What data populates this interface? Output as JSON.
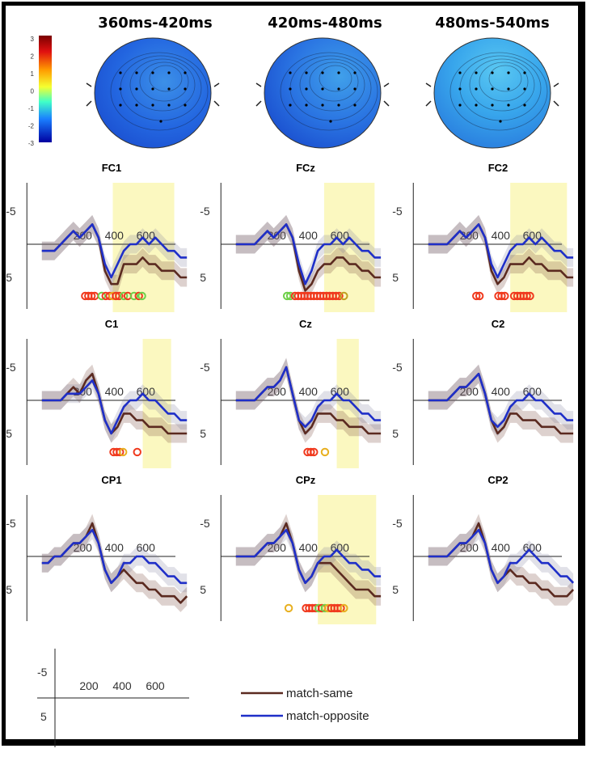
{
  "chart_data": {
    "type": "line",
    "topomaps": {
      "titles": [
        "360ms-420ms",
        "420ms-480ms",
        "480ms-540ms"
      ],
      "colorbar": {
        "ticks": [
          "3",
          "2",
          "1",
          "0",
          "-1",
          "-2",
          "-3"
        ],
        "range": [
          -3,
          3
        ]
      },
      "mean_amplitude": [
        -2.0,
        -1.8,
        -1.5
      ]
    },
    "x_ticks": [
      "200",
      "400",
      "600"
    ],
    "y_ticks": [
      "-5",
      "5"
    ],
    "y_inverted": true,
    "series": [
      {
        "name": "match-same",
        "color": "#5b2a20"
      },
      {
        "name": "match-opposite",
        "color": "#1f2fc8"
      }
    ],
    "panels": [
      {
        "title": "FC1",
        "highlight_ms": [
          350,
          740
        ],
        "x": [
          -100,
          -60,
          -20,
          20,
          60,
          100,
          140,
          180,
          220,
          260,
          300,
          340,
          380,
          420,
          460,
          500,
          540,
          580,
          620,
          660,
          700,
          740,
          780,
          820
        ],
        "match_same": [
          1,
          1,
          1,
          0,
          -1,
          -2,
          -1,
          -2,
          -3,
          -1,
          4,
          6,
          6,
          3,
          3,
          3,
          2,
          3,
          3,
          4,
          4,
          4,
          5,
          5
        ],
        "match_opposite": [
          1,
          1,
          1,
          0,
          -1,
          -2,
          -1,
          -2,
          -3,
          -1,
          3,
          5,
          3,
          1,
          0,
          0,
          -1,
          0,
          -1,
          0,
          1,
          1,
          2,
          2
        ],
        "markers": [
          {
            "ms": 370,
            "c": "#f03a1e"
          },
          {
            "ms": 390,
            "c": "#f03a1e"
          },
          {
            "ms": 410,
            "c": "#f03a1e"
          },
          {
            "ms": 430,
            "c": "#f03a1e"
          },
          {
            "ms": 475,
            "c": "#6fd04a"
          },
          {
            "ms": 500,
            "c": "#f03a1e"
          },
          {
            "ms": 525,
            "c": "#f03a1e"
          },
          {
            "ms": 545,
            "c": "#e8b020"
          },
          {
            "ms": 565,
            "c": "#f03a1e"
          },
          {
            "ms": 585,
            "c": "#f03a1e"
          },
          {
            "ms": 615,
            "c": "#6fd04a"
          },
          {
            "ms": 640,
            "c": "#f03a1e"
          },
          {
            "ms": 680,
            "c": "#6fd04a"
          },
          {
            "ms": 710,
            "c": "#f03a1e"
          },
          {
            "ms": 730,
            "c": "#6fd04a"
          }
        ]
      },
      {
        "title": "FCz",
        "highlight_ms": [
          460,
          780
        ],
        "x": [
          -100,
          -60,
          -20,
          20,
          60,
          100,
          140,
          180,
          220,
          260,
          300,
          340,
          380,
          420,
          460,
          500,
          540,
          580,
          620,
          660,
          700,
          740,
          780,
          820
        ],
        "match_same": [
          0,
          0,
          0,
          0,
          -1,
          -2,
          -1,
          -2,
          -3,
          -1,
          4,
          7,
          6,
          4,
          3,
          3,
          2,
          2,
          3,
          3,
          4,
          4,
          5,
          5
        ],
        "match_opposite": [
          0,
          0,
          0,
          0,
          -1,
          -2,
          -1,
          -2,
          -3,
          -1,
          3,
          6,
          4,
          1,
          0,
          0,
          -1,
          0,
          -1,
          0,
          1,
          1,
          2,
          2
        ],
        "markers": [
          {
            "ms": 420,
            "c": "#6fd04a"
          },
          {
            "ms": 440,
            "c": "#6fd04a"
          },
          {
            "ms": 470,
            "c": "#f03a1e"
          },
          {
            "ms": 490,
            "c": "#f03a1e"
          },
          {
            "ms": 510,
            "c": "#f03a1e"
          },
          {
            "ms": 530,
            "c": "#f03a1e"
          },
          {
            "ms": 550,
            "c": "#f03a1e"
          },
          {
            "ms": 570,
            "c": "#f03a1e"
          },
          {
            "ms": 590,
            "c": "#f03a1e"
          },
          {
            "ms": 610,
            "c": "#f03a1e"
          },
          {
            "ms": 630,
            "c": "#f03a1e"
          },
          {
            "ms": 650,
            "c": "#f03a1e"
          },
          {
            "ms": 670,
            "c": "#f03a1e"
          },
          {
            "ms": 690,
            "c": "#f03a1e"
          },
          {
            "ms": 710,
            "c": "#f03a1e"
          },
          {
            "ms": 730,
            "c": "#f03a1e"
          },
          {
            "ms": 750,
            "c": "#f03a1e"
          },
          {
            "ms": 780,
            "c": "#c0a020"
          }
        ]
      },
      {
        "title": "FC2",
        "highlight_ms": [
          420,
          780
        ],
        "x": [
          -100,
          -60,
          -20,
          20,
          60,
          100,
          140,
          180,
          220,
          260,
          300,
          340,
          380,
          420,
          460,
          500,
          540,
          580,
          620,
          660,
          700,
          740,
          780,
          820
        ],
        "match_same": [
          0,
          0,
          0,
          0,
          -1,
          -2,
          -1,
          -2,
          -3,
          -1,
          4,
          6,
          5,
          3,
          3,
          3,
          2,
          3,
          3,
          4,
          4,
          4,
          5,
          5
        ],
        "match_opposite": [
          0,
          0,
          0,
          0,
          -1,
          -2,
          -1,
          -2,
          -3,
          -1,
          3,
          5,
          3,
          1,
          0,
          0,
          -1,
          0,
          -1,
          0,
          1,
          1,
          2,
          2
        ],
        "markers": [
          {
            "ms": 400,
            "c": "#f03a1e"
          },
          {
            "ms": 420,
            "c": "#f03a1e"
          },
          {
            "ms": 540,
            "c": "#f03a1e"
          },
          {
            "ms": 560,
            "c": "#f03a1e"
          },
          {
            "ms": 580,
            "c": "#f03a1e"
          },
          {
            "ms": 640,
            "c": "#f03a1e"
          },
          {
            "ms": 660,
            "c": "#f03a1e"
          },
          {
            "ms": 680,
            "c": "#f03a1e"
          },
          {
            "ms": 700,
            "c": "#f03a1e"
          },
          {
            "ms": 720,
            "c": "#f03a1e"
          },
          {
            "ms": 740,
            "c": "#f03a1e"
          }
        ]
      },
      {
        "title": "C1",
        "highlight_ms": [
          540,
          720
        ],
        "x": [
          -100,
          -60,
          -20,
          20,
          60,
          100,
          140,
          180,
          220,
          260,
          300,
          340,
          380,
          420,
          460,
          500,
          540,
          580,
          620,
          660,
          700,
          740,
          780,
          820
        ],
        "match_same": [
          0,
          0,
          0,
          0,
          -1,
          -2,
          -1,
          -3,
          -4,
          -1,
          3,
          5,
          4,
          2,
          2,
          3,
          3,
          4,
          4,
          4,
          5,
          5,
          5,
          5
        ],
        "match_opposite": [
          0,
          0,
          0,
          0,
          -1,
          -1,
          -1,
          -2,
          -3,
          -1,
          3,
          5,
          3,
          1,
          0,
          0,
          -1,
          0,
          0,
          1,
          2,
          2,
          3,
          3
        ],
        "markers": [
          {
            "ms": 550,
            "c": "#f03a1e"
          },
          {
            "ms": 570,
            "c": "#f03a1e"
          },
          {
            "ms": 590,
            "c": "#f03a1e"
          },
          {
            "ms": 610,
            "c": "#e8b020"
          },
          {
            "ms": 700,
            "c": "#f03a1e"
          }
        ]
      },
      {
        "title": "Cz",
        "highlight_ms": [
          540,
          680
        ],
        "x": [
          -100,
          -60,
          -20,
          20,
          60,
          100,
          140,
          180,
          220,
          260,
          300,
          340,
          380,
          420,
          460,
          500,
          540,
          580,
          620,
          660,
          700,
          740,
          780,
          820
        ],
        "match_same": [
          0,
          0,
          0,
          0,
          -1,
          -2,
          -2,
          -3,
          -5,
          -1,
          3,
          5,
          4,
          2,
          2,
          2,
          3,
          3,
          4,
          4,
          4,
          5,
          5,
          5
        ],
        "match_opposite": [
          0,
          0,
          0,
          0,
          -1,
          -2,
          -2,
          -3,
          -5,
          -1,
          3,
          4,
          3,
          1,
          0,
          0,
          -1,
          0,
          0,
          1,
          2,
          2,
          3,
          3
        ],
        "markers": [
          {
            "ms": 550,
            "c": "#f03a1e"
          },
          {
            "ms": 570,
            "c": "#f03a1e"
          },
          {
            "ms": 590,
            "c": "#f03a1e"
          },
          {
            "ms": 660,
            "c": "#e8b020"
          }
        ]
      },
      {
        "title": "C2",
        "highlight_ms": null,
        "x": [
          -100,
          -60,
          -20,
          20,
          60,
          100,
          140,
          180,
          220,
          260,
          300,
          340,
          380,
          420,
          460,
          500,
          540,
          580,
          620,
          660,
          700,
          740,
          780,
          820
        ],
        "match_same": [
          0,
          0,
          0,
          0,
          -1,
          -2,
          -2,
          -3,
          -4,
          -1,
          3,
          5,
          4,
          2,
          2,
          3,
          3,
          3,
          4,
          4,
          4,
          5,
          5,
          5
        ],
        "match_opposite": [
          0,
          0,
          0,
          0,
          -1,
          -2,
          -2,
          -3,
          -4,
          -1,
          3,
          4,
          3,
          1,
          0,
          0,
          -1,
          0,
          0,
          1,
          2,
          2,
          3,
          3
        ],
        "markers": []
      },
      {
        "title": "CP1",
        "highlight_ms": null,
        "x": [
          -100,
          -60,
          -20,
          20,
          60,
          100,
          140,
          180,
          220,
          260,
          300,
          340,
          380,
          420,
          460,
          500,
          540,
          580,
          620,
          660,
          700,
          740,
          780,
          820
        ],
        "match_same": [
          1,
          1,
          0,
          0,
          -1,
          -2,
          -2,
          -3,
          -5,
          -2,
          2,
          4,
          3,
          2,
          3,
          4,
          4,
          5,
          5,
          6,
          6,
          6,
          7,
          6
        ],
        "match_opposite": [
          1,
          1,
          0,
          0,
          -1,
          -2,
          -2,
          -3,
          -4,
          -2,
          2,
          4,
          3,
          1,
          1,
          0,
          0,
          1,
          1,
          2,
          3,
          3,
          4,
          4
        ],
        "markers": []
      },
      {
        "title": "CPz",
        "highlight_ms": [
          420,
          790
        ],
        "x": [
          -100,
          -60,
          -20,
          20,
          60,
          100,
          140,
          180,
          220,
          260,
          300,
          340,
          380,
          420,
          460,
          500,
          540,
          580,
          620,
          660,
          700,
          740,
          780,
          820
        ],
        "match_same": [
          0,
          0,
          0,
          0,
          -1,
          -2,
          -2,
          -3,
          -5,
          -2,
          2,
          4,
          3,
          1,
          1,
          1,
          2,
          3,
          4,
          5,
          5,
          5,
          6,
          6
        ],
        "match_opposite": [
          0,
          0,
          0,
          0,
          -1,
          -2,
          -2,
          -3,
          -4,
          -2,
          2,
          4,
          3,
          1,
          0,
          0,
          -1,
          0,
          1,
          1,
          2,
          2,
          3,
          3
        ],
        "markers": [
          {
            "ms": 430,
            "c": "#e8b020"
          },
          {
            "ms": 540,
            "c": "#f03a1e"
          },
          {
            "ms": 560,
            "c": "#f03a1e"
          },
          {
            "ms": 580,
            "c": "#f03a1e"
          },
          {
            "ms": 600,
            "c": "#f03a1e"
          },
          {
            "ms": 620,
            "c": "#6fd04a"
          },
          {
            "ms": 640,
            "c": "#f03a1e"
          },
          {
            "ms": 660,
            "c": "#6fd04a"
          },
          {
            "ms": 680,
            "c": "#e8b020"
          },
          {
            "ms": 700,
            "c": "#f03a1e"
          },
          {
            "ms": 720,
            "c": "#f03a1e"
          },
          {
            "ms": 740,
            "c": "#f03a1e"
          },
          {
            "ms": 760,
            "c": "#f03a1e"
          },
          {
            "ms": 780,
            "c": "#e8b020"
          }
        ]
      },
      {
        "title": "CP2",
        "highlight_ms": null,
        "x": [
          -100,
          -60,
          -20,
          20,
          60,
          100,
          140,
          180,
          220,
          260,
          300,
          340,
          380,
          420,
          460,
          500,
          540,
          580,
          620,
          660,
          700,
          740,
          780,
          820
        ],
        "match_same": [
          0,
          0,
          0,
          0,
          -1,
          -2,
          -2,
          -3,
          -5,
          -2,
          2,
          4,
          3,
          2,
          3,
          3,
          4,
          4,
          5,
          5,
          6,
          6,
          6,
          5
        ],
        "match_opposite": [
          0,
          0,
          0,
          0,
          -1,
          -2,
          -2,
          -3,
          -4,
          -2,
          2,
          4,
          3,
          1,
          1,
          0,
          -1,
          0,
          1,
          1,
          2,
          3,
          3,
          4
        ],
        "markers": []
      }
    ]
  }
}
